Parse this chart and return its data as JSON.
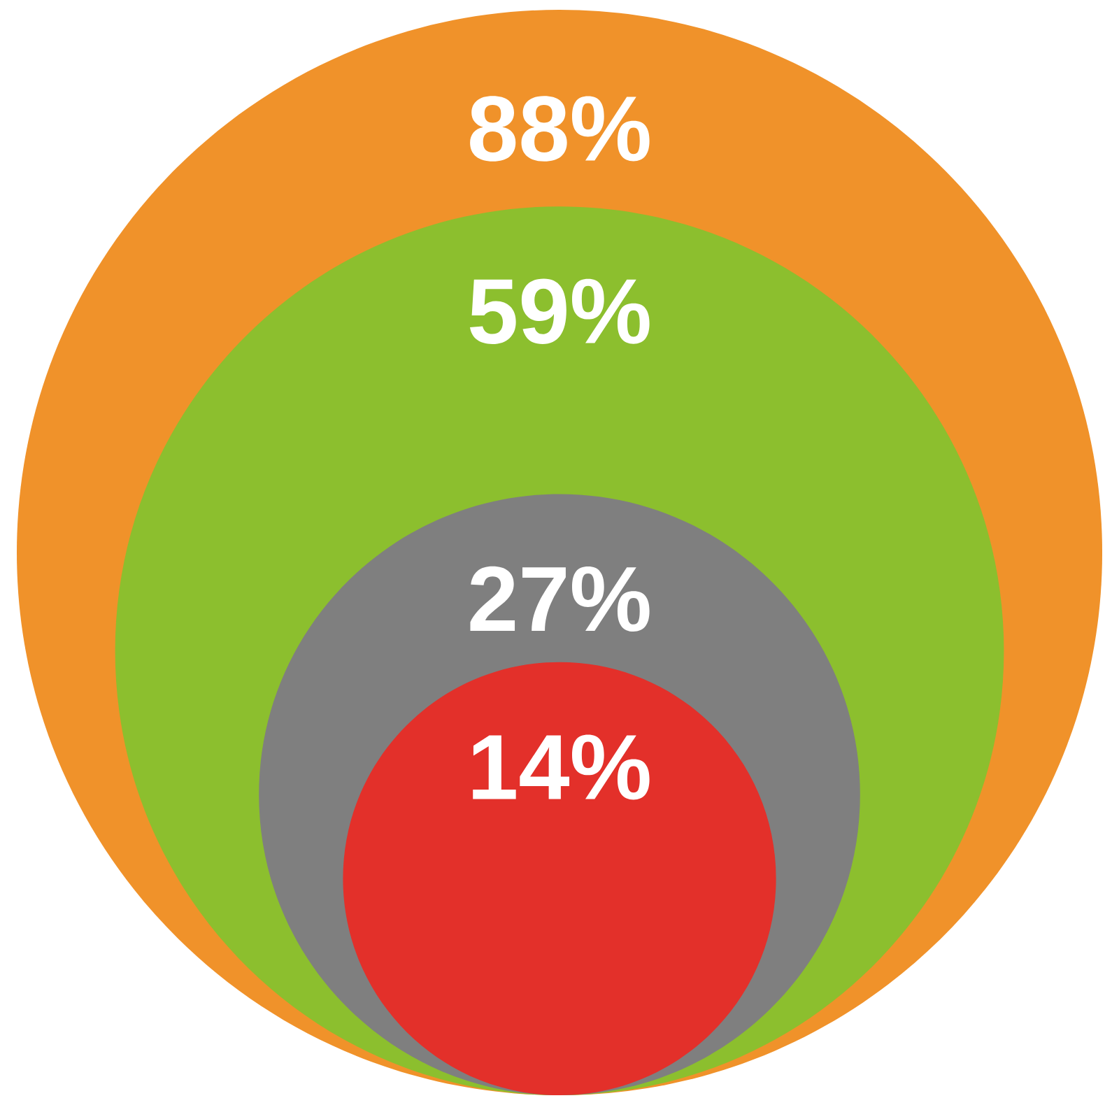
{
  "chart_data": {
    "type": "other",
    "categories": [
      null,
      null,
      null,
      null
    ],
    "values": [
      88,
      59,
      27,
      14
    ],
    "value_labels": [
      "88%",
      "59%",
      "27%",
      "14%"
    ],
    "colors": [
      "#f0922a",
      "#8cbf2e",
      "#7f7f7f",
      "#e3302a"
    ]
  }
}
